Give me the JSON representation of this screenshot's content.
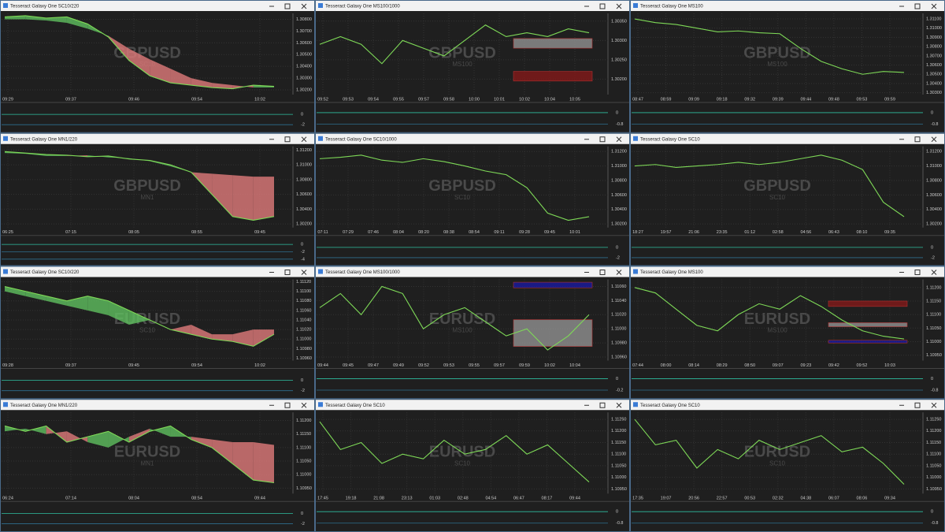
{
  "panels": [
    {
      "title": "Tesseract Galaxy One SC10/220",
      "symbol": "GBPUSD",
      "sub": "SC10",
      "ylim": [
        1.3016,
        1.3085
      ],
      "yticks": [
        {
          "value": 1.308,
          "label": "1.30800"
        },
        {
          "value": 1.307,
          "label": "1.30700"
        },
        {
          "value": 1.306,
          "label": "1.30600"
        },
        {
          "value": 1.305,
          "label": "1.30500"
        },
        {
          "value": 1.304,
          "label": "1.30400"
        },
        {
          "value": 1.303,
          "label": "1.30300"
        },
        {
          "value": 1.302,
          "label": "1.30200"
        }
      ],
      "xticks": [
        "09:29",
        "09:37",
        "09:46",
        "09:54",
        "10:02"
      ],
      "values": [
        1.3082,
        1.3083,
        1.3081,
        1.3082,
        1.3076,
        1.3065,
        1.3045,
        1.3032,
        1.3026,
        1.3024,
        1.3022,
        1.3021,
        1.3024,
        1.3023
      ],
      "cloud": [
        1.308,
        1.308,
        1.3079,
        1.3077,
        1.3072,
        1.3066,
        1.3055,
        1.3046,
        1.3038,
        1.303,
        1.3026,
        1.3024,
        1.3022,
        1.3022
      ],
      "ind_ylim": [
        -3,
        2
      ],
      "ind_ticks": [
        0,
        -2
      ]
    },
    {
      "title": "Tesseract Galaxy One MS100/1000",
      "symbol": "GBPUSD",
      "sub": "MS100",
      "ylim": [
        1.3016,
        1.3037
      ],
      "yticks": [
        {
          "value": 1.3035,
          "label": "1.30350"
        },
        {
          "value": 1.303,
          "label": "1.30300"
        },
        {
          "value": 1.3025,
          "label": "1.30250"
        },
        {
          "value": 1.302,
          "label": "1.30200"
        }
      ],
      "xticks": [
        "09:52",
        "09:53",
        "09:54",
        "09:55",
        "09:57",
        "09:58",
        "10:00",
        "10:01",
        "10:02",
        "10:04",
        "10:05"
      ],
      "values": [
        1.3029,
        1.3031,
        1.3029,
        1.3024,
        1.303,
        1.3028,
        1.3026,
        1.303,
        1.3034,
        1.3031,
        1.3032,
        1.3031,
        1.3033,
        1.3032
      ],
      "zones": [
        {
          "from": 1.3028,
          "to": 1.30305,
          "color": "#9a9a9a"
        },
        {
          "from": 1.30195,
          "to": 1.3022,
          "color": "#8b1a1a"
        }
      ],
      "ind_ylim": [
        -1.2,
        0.6
      ],
      "ind_ticks": [
        0,
        -0.8
      ]
    },
    {
      "title": "Tesseract Galaxy One MS100",
      "symbol": "GBPUSD",
      "sub": "MS100",
      "ylim": [
        1.3028,
        1.3116
      ],
      "yticks": [
        {
          "value": 1.311,
          "label": "1.31100"
        },
        {
          "value": 1.31,
          "label": "1.31000"
        },
        {
          "value": 1.309,
          "label": "1.30900"
        },
        {
          "value": 1.308,
          "label": "1.30800"
        },
        {
          "value": 1.307,
          "label": "1.30700"
        },
        {
          "value": 1.306,
          "label": "1.30600"
        },
        {
          "value": 1.305,
          "label": "1.30500"
        },
        {
          "value": 1.304,
          "label": "1.30400"
        },
        {
          "value": 1.303,
          "label": "1.30300"
        }
      ],
      "xticks": [
        "08:47",
        "08:59",
        "09:09",
        "09:18",
        "09:32",
        "09:39",
        "09:44",
        "09:48",
        "09:53",
        "09:59"
      ],
      "values": [
        1.311,
        1.3106,
        1.3104,
        1.31,
        1.3096,
        1.3097,
        1.3095,
        1.3094,
        1.3078,
        1.3064,
        1.3056,
        1.305,
        1.3053,
        1.3052
      ],
      "ind_ylim": [
        -1.2,
        0.6
      ],
      "ind_ticks": [
        0,
        -0.8
      ]
    },
    {
      "title": "Tesseract Galaxy One MN1/220",
      "symbol": "GBPUSD",
      "sub": "MN1",
      "ylim": [
        1.3015,
        1.3125
      ],
      "yticks": [
        {
          "value": 1.312,
          "label": "1.31200"
        },
        {
          "value": 1.31,
          "label": "1.31000"
        },
        {
          "value": 1.308,
          "label": "1.30800"
        },
        {
          "value": 1.306,
          "label": "1.30600"
        },
        {
          "value": 1.304,
          "label": "1.30400"
        },
        {
          "value": 1.302,
          "label": "1.30200"
        }
      ],
      "xticks": [
        "06:25",
        "07:15",
        "08:05",
        "08:55",
        "09:45"
      ],
      "values": [
        1.3118,
        1.3116,
        1.3114,
        1.3113,
        1.3111,
        1.3112,
        1.3108,
        1.3106,
        1.31,
        1.309,
        1.306,
        1.303,
        1.3025,
        1.303
      ],
      "cloud": [
        1.3116,
        1.3115,
        1.3112,
        1.3112,
        1.3113,
        1.311,
        1.3109,
        1.3105,
        1.3098,
        1.309,
        1.3088,
        1.3086,
        1.3084,
        1.3084
      ],
      "ind_ylim": [
        -5,
        2
      ],
      "ind_ticks": [
        0,
        -2,
        -4
      ]
    },
    {
      "title": "Tesseract Galaxy One SC10/1000",
      "symbol": "GBPUSD",
      "sub": "SC10",
      "ylim": [
        1.3015,
        1.3127
      ],
      "yticks": [
        {
          "value": 1.312,
          "label": "1.31200"
        },
        {
          "value": 1.31,
          "label": "1.31000"
        },
        {
          "value": 1.308,
          "label": "1.30800"
        },
        {
          "value": 1.306,
          "label": "1.30600"
        },
        {
          "value": 1.304,
          "label": "1.30400"
        },
        {
          "value": 1.302,
          "label": "1.30200"
        }
      ],
      "xticks": [
        "07:11",
        "07:29",
        "07:46",
        "08:04",
        "08:20",
        "08:38",
        "08:54",
        "09:11",
        "09:28",
        "09:45",
        "10:01"
      ],
      "values": [
        1.311,
        1.3112,
        1.3115,
        1.3108,
        1.3105,
        1.311,
        1.3106,
        1.31,
        1.3093,
        1.3088,
        1.307,
        1.3035,
        1.3025,
        1.303
      ],
      "ind_ylim": [
        -3,
        2
      ],
      "ind_ticks": [
        0,
        -2
      ]
    },
    {
      "title": "Tesseract Galaxy One SC10",
      "symbol": "GBPUSD",
      "sub": "SC10",
      "ylim": [
        1.3015,
        1.3127
      ],
      "yticks": [
        {
          "value": 1.312,
          "label": "1.31200"
        },
        {
          "value": 1.31,
          "label": "1.31000"
        },
        {
          "value": 1.308,
          "label": "1.30800"
        },
        {
          "value": 1.306,
          "label": "1.30600"
        },
        {
          "value": 1.304,
          "label": "1.30400"
        },
        {
          "value": 1.302,
          "label": "1.30200"
        }
      ],
      "xticks": [
        "18:27",
        "19:57",
        "21:06",
        "23:35",
        "01:12",
        "02:58",
        "04:56",
        "06:43",
        "08:10",
        "09:35"
      ],
      "values": [
        1.31,
        1.3102,
        1.3098,
        1.31,
        1.3102,
        1.3105,
        1.3102,
        1.3105,
        1.311,
        1.3115,
        1.3108,
        1.3095,
        1.305,
        1.303
      ],
      "ind_ylim": [
        -3,
        2
      ],
      "ind_ticks": [
        0,
        -2
      ]
    },
    {
      "title": "Tesseract Galaxy One SC10/220",
      "symbol": "EURUSD",
      "sub": "SC10",
      "ylim": [
        1.10955,
        1.11125
      ],
      "yticks": [
        {
          "value": 1.1112,
          "label": "1.11120"
        },
        {
          "value": 1.111,
          "label": "1.11100"
        },
        {
          "value": 1.1108,
          "label": "1.11080"
        },
        {
          "value": 1.1106,
          "label": "1.11060"
        },
        {
          "value": 1.1104,
          "label": "1.11040"
        },
        {
          "value": 1.1102,
          "label": "1.11020"
        },
        {
          "value": 1.11,
          "label": "1.11000"
        },
        {
          "value": 1.1098,
          "label": "1.10980"
        },
        {
          "value": 1.1096,
          "label": "1.10960"
        }
      ],
      "xticks": [
        "09:28",
        "09:37",
        "09:45",
        "09:54",
        "10:02"
      ],
      "values": [
        1.1111,
        1.111,
        1.1109,
        1.1108,
        1.1109,
        1.1108,
        1.1106,
        1.1104,
        1.1102,
        1.1101,
        1.11,
        1.10995,
        1.10985,
        1.1101
      ],
      "cloud": [
        1.111,
        1.1109,
        1.1108,
        1.1107,
        1.1106,
        1.1105,
        1.1103,
        1.1104,
        1.1102,
        1.1103,
        1.1101,
        1.1101,
        1.1102,
        1.1102
      ],
      "ind_ylim": [
        -3,
        2
      ],
      "ind_ticks": [
        0,
        -2
      ]
    },
    {
      "title": "Tesseract Galaxy One MS100/1000",
      "symbol": "EURUSD",
      "sub": "MS100",
      "ylim": [
        1.10955,
        1.1107
      ],
      "yticks": [
        {
          "value": 1.1106,
          "label": "1.11060"
        },
        {
          "value": 1.1104,
          "label": "1.11040"
        },
        {
          "value": 1.1102,
          "label": "1.11020"
        },
        {
          "value": 1.11,
          "label": "1.11000"
        },
        {
          "value": 1.1098,
          "label": "1.10980"
        },
        {
          "value": 1.1096,
          "label": "1.10960"
        }
      ],
      "xticks": [
        "09:44",
        "09:45",
        "09:47",
        "09:49",
        "09:52",
        "09:53",
        "09:55",
        "09:57",
        "09:59",
        "10:02",
        "10:04"
      ],
      "values": [
        1.1103,
        1.1105,
        1.1102,
        1.1106,
        1.1105,
        1.11,
        1.1102,
        1.1103,
        1.1101,
        1.1099,
        1.11,
        1.1097,
        1.1099,
        1.1102
      ],
      "zones": [
        {
          "from": 1.11058,
          "to": 1.11066,
          "color": "#1a1aa8"
        },
        {
          "from": 1.10975,
          "to": 1.11013,
          "color": "#9a9a9a"
        }
      ],
      "ind_ylim": [
        -0.3,
        0.15
      ],
      "ind_ticks": [
        0,
        -0.2
      ]
    },
    {
      "title": "Tesseract Galaxy One MS100",
      "symbol": "EURUSD",
      "sub": "MS100",
      "ylim": [
        1.1093,
        1.1123
      ],
      "yticks": [
        {
          "value": 1.112,
          "label": "1.11200"
        },
        {
          "value": 1.1115,
          "label": "1.11150"
        },
        {
          "value": 1.111,
          "label": "1.11100"
        },
        {
          "value": 1.1105,
          "label": "1.11050"
        },
        {
          "value": 1.11,
          "label": "1.11000"
        },
        {
          "value": 1.1095,
          "label": "1.10950"
        }
      ],
      "xticks": [
        "07:44",
        "08:00",
        "08:14",
        "08:29",
        "08:50",
        "09:07",
        "09:23",
        "09:42",
        "09:52",
        "10:03"
      ],
      "values": [
        1.112,
        1.1118,
        1.1112,
        1.1106,
        1.1104,
        1.111,
        1.1114,
        1.1112,
        1.1117,
        1.1113,
        1.1108,
        1.1104,
        1.1102,
        1.1101
      ],
      "zones": [
        {
          "from": 1.1113,
          "to": 1.1115,
          "color": "#8b1a1a"
        },
        {
          "from": 1.11055,
          "to": 1.1107,
          "color": "#9a9a9a"
        },
        {
          "from": 1.10995,
          "to": 1.11005,
          "color": "#1a1aa8"
        }
      ],
      "ind_ylim": [
        -1.2,
        0.6
      ],
      "ind_ticks": [
        0,
        -0.8
      ]
    },
    {
      "title": "Tesseract Galaxy One MN1/220",
      "symbol": "EURUSD",
      "sub": "MN1",
      "ylim": [
        1.1093,
        1.1123
      ],
      "yticks": [
        {
          "value": 1.112,
          "label": "1.11200"
        },
        {
          "value": 1.1115,
          "label": "1.11150"
        },
        {
          "value": 1.111,
          "label": "1.11100"
        },
        {
          "value": 1.1105,
          "label": "1.11050"
        },
        {
          "value": 1.11,
          "label": "1.11000"
        },
        {
          "value": 1.1095,
          "label": "1.10950"
        }
      ],
      "xticks": [
        "06:24",
        "07:14",
        "08:04",
        "08:54",
        "09:44"
      ],
      "values": [
        1.1118,
        1.1116,
        1.1118,
        1.1112,
        1.1114,
        1.1116,
        1.1112,
        1.1116,
        1.1118,
        1.1113,
        1.111,
        1.1104,
        1.1098,
        1.1097
      ],
      "cloud": [
        1.1116,
        1.1117,
        1.1115,
        1.1116,
        1.1112,
        1.111,
        1.1114,
        1.1117,
        1.1114,
        1.1114,
        1.1113,
        1.1112,
        1.1112,
        1.1111
      ],
      "ind_ylim": [
        -3,
        2
      ],
      "ind_ticks": [
        0,
        -2
      ]
    },
    {
      "title": "Tesseract Galaxy One SC10",
      "symbol": "EURUSD",
      "sub": "SC10",
      "ylim": [
        1.1093,
        1.1128
      ],
      "yticks": [
        {
          "value": 1.1125,
          "label": "1.11250"
        },
        {
          "value": 1.112,
          "label": "1.11200"
        },
        {
          "value": 1.1115,
          "label": "1.11150"
        },
        {
          "value": 1.111,
          "label": "1.11100"
        },
        {
          "value": 1.1105,
          "label": "1.11050"
        },
        {
          "value": 1.11,
          "label": "1.11000"
        },
        {
          "value": 1.1095,
          "label": "1.10950"
        }
      ],
      "xticks": [
        "17:45",
        "19:18",
        "21:08",
        "23:13",
        "01:03",
        "02:48",
        "04:54",
        "06:47",
        "08:17",
        "09:44"
      ],
      "values": [
        1.1124,
        1.1112,
        1.1115,
        1.1106,
        1.111,
        1.1108,
        1.1116,
        1.111,
        1.1112,
        1.1118,
        1.111,
        1.1114,
        1.1106,
        1.1098
      ],
      "ind_ylim": [
        -1.2,
        0.6
      ],
      "ind_ticks": [
        0,
        -0.8
      ]
    },
    {
      "title": "Tesseract Galaxy One SC10",
      "symbol": "EURUSD",
      "sub": "SC10",
      "ylim": [
        1.1093,
        1.1128
      ],
      "yticks": [
        {
          "value": 1.1125,
          "label": "1.11250"
        },
        {
          "value": 1.112,
          "label": "1.11200"
        },
        {
          "value": 1.1115,
          "label": "1.11150"
        },
        {
          "value": 1.111,
          "label": "1.11100"
        },
        {
          "value": 1.1105,
          "label": "1.11050"
        },
        {
          "value": 1.11,
          "label": "1.11000"
        },
        {
          "value": 1.1095,
          "label": "1.10950"
        }
      ],
      "xticks": [
        "17:35",
        "19:07",
        "20:56",
        "22:57",
        "00:53",
        "02:32",
        "04:38",
        "06:07",
        "08:06",
        "09:34"
      ],
      "values": [
        1.1125,
        1.1114,
        1.1116,
        1.1104,
        1.1112,
        1.1108,
        1.1116,
        1.1112,
        1.1115,
        1.1118,
        1.1111,
        1.1113,
        1.1106,
        1.1097
      ],
      "ind_ylim": [
        -1.2,
        0.6
      ],
      "ind_ticks": [
        0,
        -0.8
      ]
    }
  ]
}
